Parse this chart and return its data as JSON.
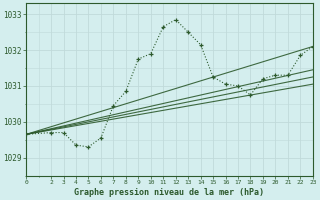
{
  "title": "Graphe pression niveau de la mer (hPa)",
  "background_color": "#d4eeee",
  "grid_color": "#c0dada",
  "line_color": "#2d5a2d",
  "xlim": [
    0,
    23
  ],
  "ylim": [
    1028.7,
    1033.3
  ],
  "xticks": [
    0,
    2,
    3,
    4,
    5,
    6,
    7,
    8,
    9,
    10,
    11,
    12,
    13,
    14,
    15,
    16,
    17,
    18,
    19,
    20,
    21,
    22,
    23
  ],
  "yticks": [
    1029,
    1030,
    1031,
    1032,
    1033
  ],
  "main_x": [
    0,
    2,
    3,
    4,
    5,
    6,
    7,
    8,
    9,
    10,
    11,
    12,
    13,
    14,
    15,
    16,
    17,
    18,
    19,
    20,
    21,
    22,
    23
  ],
  "main_y": [
    1029.65,
    1029.7,
    1029.7,
    1029.35,
    1029.3,
    1029.55,
    1030.45,
    1030.85,
    1031.75,
    1031.9,
    1032.65,
    1032.85,
    1032.5,
    1032.15,
    1031.25,
    1031.05,
    1031.0,
    1030.75,
    1031.2,
    1031.3,
    1031.3,
    1031.85,
    1032.1
  ],
  "trend_lines": [
    {
      "x": [
        0,
        23
      ],
      "y": [
        1029.65,
        1032.1
      ]
    },
    {
      "x": [
        0,
        23
      ],
      "y": [
        1029.65,
        1031.45
      ]
    },
    {
      "x": [
        0,
        23
      ],
      "y": [
        1029.65,
        1031.25
      ]
    },
    {
      "x": [
        0,
        23
      ],
      "y": [
        1029.65,
        1031.05
      ]
    }
  ]
}
